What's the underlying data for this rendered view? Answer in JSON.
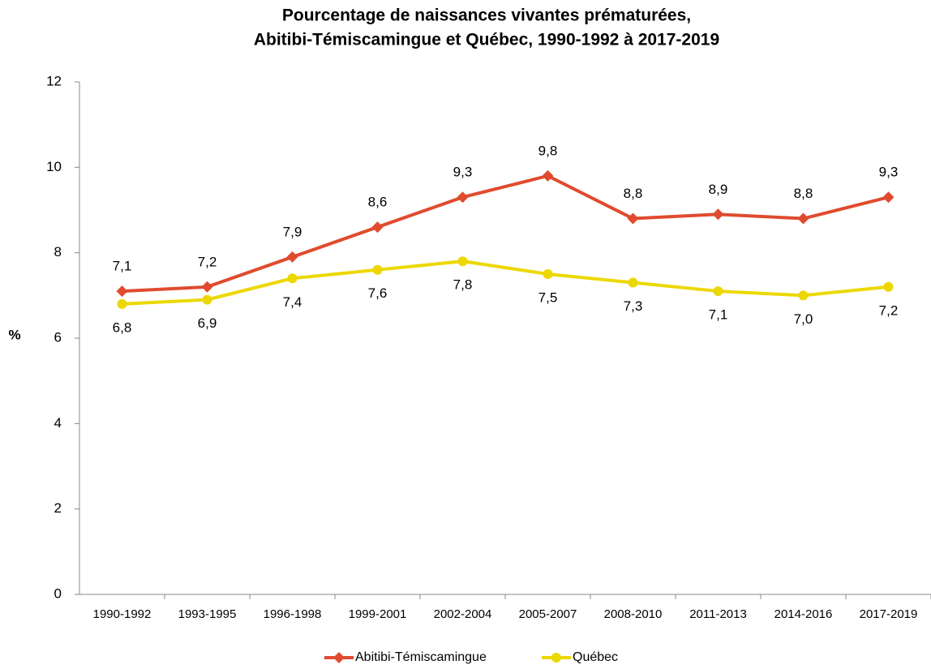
{
  "chart_data": {
    "type": "line",
    "title": [
      "Pourcentage de naissances vivantes prématurées,",
      "Abitibi-Témiscamingue et Québec, 1990-1992 à 2017-2019"
    ],
    "y_label": "%",
    "categories": [
      "1990-1992",
      "1993-1995",
      "1996-1998",
      "1999-2001",
      "2002-2004",
      "2005-2007",
      "2008-2010",
      "2011-2013",
      "2014-2016",
      "2017-2019"
    ],
    "series": [
      {
        "name": "Abitibi-Témiscamingue",
        "color": "#e04b2e",
        "marker": "diamond",
        "label_position": "above",
        "values": [
          7.1,
          7.2,
          7.9,
          8.6,
          9.3,
          9.8,
          8.8,
          8.9,
          8.8,
          9.3
        ],
        "value_labels": [
          "7,1",
          "7,2",
          "7,9",
          "8,6",
          "9,3",
          "9,8",
          "8,8",
          "8,9",
          "8,8",
          "9,3"
        ]
      },
      {
        "name": "Québec",
        "color": "#ecd800",
        "marker": "circle",
        "label_position": "below",
        "values": [
          6.8,
          6.9,
          7.4,
          7.6,
          7.8,
          7.5,
          7.3,
          7.1,
          7.0,
          7.2
        ],
        "value_labels": [
          "6,8",
          "6,9",
          "7,4",
          "7,6",
          "7,8",
          "7,5",
          "7,3",
          "7,1",
          "7,0",
          "7,2"
        ]
      }
    ],
    "ylim": [
      0,
      12
    ],
    "yticks": [
      0,
      2,
      4,
      6,
      8,
      10,
      12
    ],
    "grid": false,
    "legend": "bottom"
  }
}
